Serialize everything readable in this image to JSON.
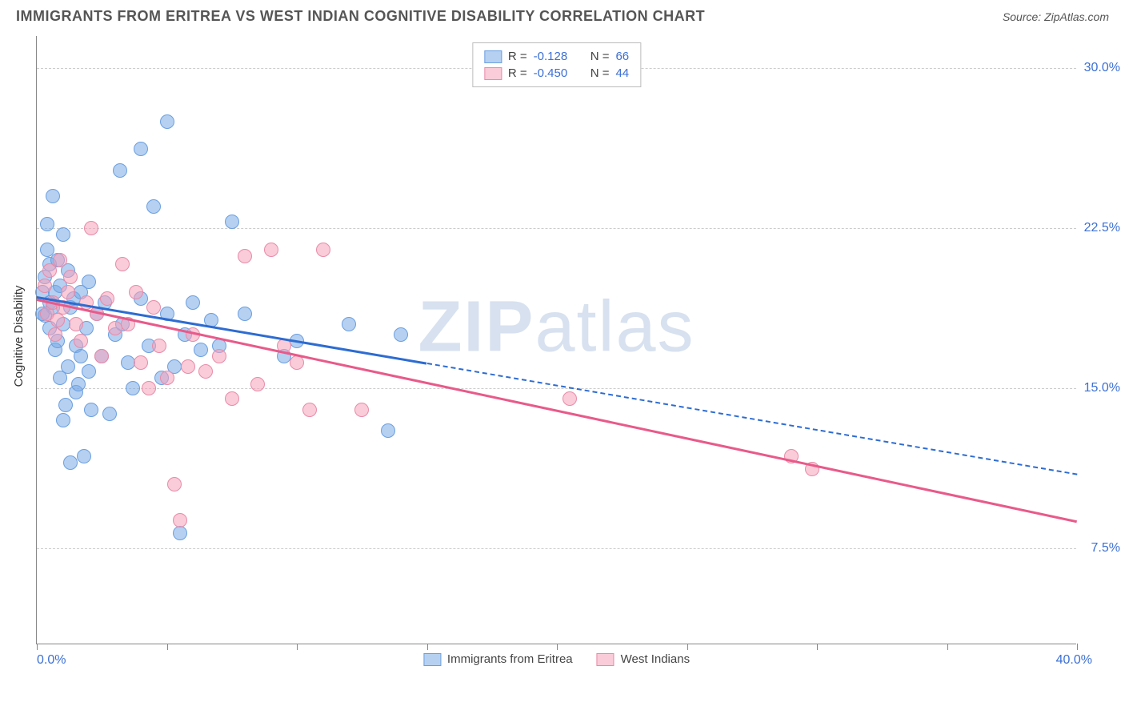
{
  "header": {
    "title": "IMMIGRANTS FROM ERITREA VS WEST INDIAN COGNITIVE DISABILITY CORRELATION CHART",
    "source": "Source: ZipAtlas.com"
  },
  "chart": {
    "type": "scatter",
    "ylabel": "Cognitive Disability",
    "xlim": [
      0,
      40
    ],
    "ylim": [
      3,
      31.5
    ],
    "xlim_labels": {
      "min": "0.0%",
      "max": "40.0%"
    },
    "xtick_positions": [
      0,
      5,
      10,
      15,
      20,
      25,
      30,
      35,
      40
    ],
    "yticks": [
      {
        "value": 7.5,
        "label": "7.5%"
      },
      {
        "value": 15.0,
        "label": "15.0%"
      },
      {
        "value": 22.5,
        "label": "22.5%"
      },
      {
        "value": 30.0,
        "label": "30.0%"
      }
    ],
    "background_color": "#ffffff",
    "grid_color": "#cccccc",
    "axis_color": "#888888",
    "point_radius": 9,
    "series": [
      {
        "name": "Immigrants from Eritrea",
        "fill_color": "rgba(120,170,230,0.55)",
        "stroke_color": "#6b9fe0",
        "line_color": "#2d6cd1",
        "R": "-0.128",
        "N": "66",
        "trend": {
          "x1": 0,
          "y1": 19.3,
          "x2": 15,
          "y2": 16.2,
          "x_dash_end": 40,
          "y_dash_end": 11.0
        },
        "points": [
          [
            0.2,
            19.5
          ],
          [
            0.3,
            20.2
          ],
          [
            0.3,
            18.4
          ],
          [
            0.4,
            21.5
          ],
          [
            0.4,
            22.7
          ],
          [
            0.5,
            17.8
          ],
          [
            0.5,
            19.0
          ],
          [
            0.5,
            20.8
          ],
          [
            0.6,
            24.0
          ],
          [
            0.6,
            18.8
          ],
          [
            0.7,
            19.5
          ],
          [
            0.7,
            16.8
          ],
          [
            0.8,
            17.2
          ],
          [
            0.8,
            21.0
          ],
          [
            0.9,
            15.5
          ],
          [
            0.9,
            19.8
          ],
          [
            1.0,
            13.5
          ],
          [
            1.0,
            18.0
          ],
          [
            1.0,
            22.2
          ],
          [
            1.1,
            14.2
          ],
          [
            1.2,
            16.0
          ],
          [
            1.2,
            20.5
          ],
          [
            1.3,
            11.5
          ],
          [
            1.3,
            18.8
          ],
          [
            1.4,
            19.2
          ],
          [
            1.5,
            14.8
          ],
          [
            1.5,
            17.0
          ],
          [
            1.6,
            15.2
          ],
          [
            1.7,
            16.5
          ],
          [
            1.7,
            19.5
          ],
          [
            1.8,
            11.8
          ],
          [
            1.9,
            17.8
          ],
          [
            2.0,
            15.8
          ],
          [
            2.0,
            20.0
          ],
          [
            2.1,
            14.0
          ],
          [
            2.3,
            18.5
          ],
          [
            2.5,
            16.5
          ],
          [
            2.6,
            19.0
          ],
          [
            2.8,
            13.8
          ],
          [
            3.0,
            17.5
          ],
          [
            3.2,
            25.2
          ],
          [
            3.3,
            18.0
          ],
          [
            3.5,
            16.2
          ],
          [
            3.7,
            15.0
          ],
          [
            4.0,
            26.2
          ],
          [
            4.0,
            19.2
          ],
          [
            4.3,
            17.0
          ],
          [
            4.5,
            23.5
          ],
          [
            4.8,
            15.5
          ],
          [
            5.0,
            27.5
          ],
          [
            5.0,
            18.5
          ],
          [
            5.3,
            16.0
          ],
          [
            5.5,
            8.2
          ],
          [
            5.7,
            17.5
          ],
          [
            6.0,
            19.0
          ],
          [
            6.3,
            16.8
          ],
          [
            6.7,
            18.2
          ],
          [
            7.0,
            17.0
          ],
          [
            7.5,
            22.8
          ],
          [
            8.0,
            18.5
          ],
          [
            9.5,
            16.5
          ],
          [
            10.0,
            17.2
          ],
          [
            12.0,
            18.0
          ],
          [
            13.5,
            13.0
          ],
          [
            14.0,
            17.5
          ],
          [
            0.2,
            18.5
          ]
        ]
      },
      {
        "name": "West Indians",
        "fill_color": "rgba(245,160,185,0.55)",
        "stroke_color": "#e88ba8",
        "line_color": "#e85a8a",
        "R": "-0.450",
        "N": "44",
        "trend": {
          "x1": 0,
          "y1": 19.2,
          "x2": 40,
          "y2": 8.8,
          "x_dash_end": null,
          "y_dash_end": null
        },
        "points": [
          [
            0.3,
            19.8
          ],
          [
            0.4,
            18.5
          ],
          [
            0.5,
            20.5
          ],
          [
            0.6,
            19.0
          ],
          [
            0.7,
            17.5
          ],
          [
            0.8,
            18.2
          ],
          [
            0.9,
            21.0
          ],
          [
            1.0,
            18.8
          ],
          [
            1.2,
            19.5
          ],
          [
            1.3,
            20.2
          ],
          [
            1.5,
            18.0
          ],
          [
            1.7,
            17.2
          ],
          [
            1.9,
            19.0
          ],
          [
            2.1,
            22.5
          ],
          [
            2.3,
            18.5
          ],
          [
            2.5,
            16.5
          ],
          [
            2.7,
            19.2
          ],
          [
            3.0,
            17.8
          ],
          [
            3.3,
            20.8
          ],
          [
            3.5,
            18.0
          ],
          [
            3.8,
            19.5
          ],
          [
            4.0,
            16.2
          ],
          [
            4.3,
            15.0
          ],
          [
            4.5,
            18.8
          ],
          [
            4.7,
            17.0
          ],
          [
            5.0,
            15.5
          ],
          [
            5.3,
            10.5
          ],
          [
            5.5,
            8.8
          ],
          [
            5.8,
            16.0
          ],
          [
            6.0,
            17.5
          ],
          [
            6.5,
            15.8
          ],
          [
            7.0,
            16.5
          ],
          [
            7.5,
            14.5
          ],
          [
            8.0,
            21.2
          ],
          [
            8.5,
            15.2
          ],
          [
            9.0,
            21.5
          ],
          [
            9.5,
            17.0
          ],
          [
            10.0,
            16.2
          ],
          [
            10.5,
            14.0
          ],
          [
            11.0,
            21.5
          ],
          [
            12.5,
            14.0
          ],
          [
            20.5,
            14.5
          ],
          [
            29.0,
            11.8
          ],
          [
            29.8,
            11.2
          ]
        ]
      }
    ],
    "watermark": {
      "text_bold": "ZIP",
      "text_light": "atlas"
    },
    "legend_top": {
      "r_label": "R =",
      "n_label": "N ="
    }
  }
}
